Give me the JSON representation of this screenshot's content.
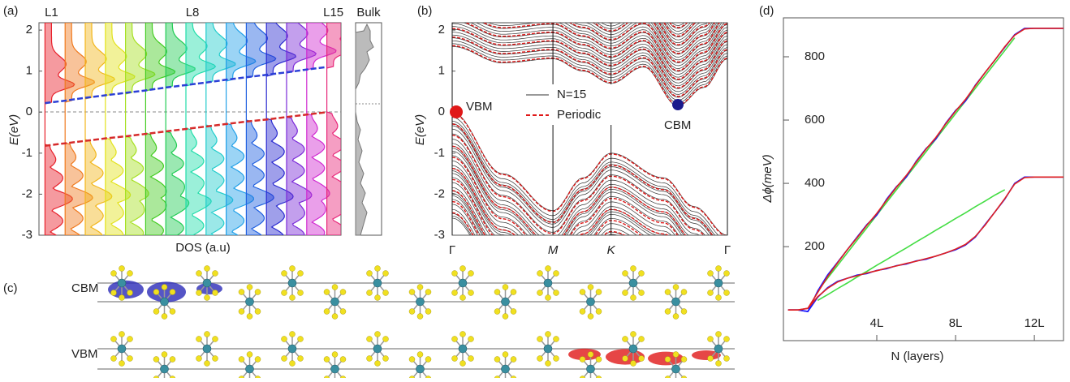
{
  "chart_data": [
    {
      "type": "dos",
      "panel_label": "(a)",
      "categories": [
        "L1",
        null,
        null,
        null,
        null,
        null,
        null,
        "L8",
        null,
        null,
        null,
        null,
        null,
        null,
        "L15"
      ],
      "series": [
        {
          "color": "#2b3fd6",
          "values": [
            0.22,
            0.28,
            0.35,
            0.41,
            0.47,
            0.53,
            0.6,
            0.66,
            0.72,
            0.79,
            0.85,
            0.91,
            0.97,
            1.04,
            1.1
          ]
        },
        {
          "color": "#d62b2b",
          "values": [
            -0.82,
            -0.76,
            -0.7,
            -0.64,
            -0.59,
            -0.53,
            -0.47,
            -0.41,
            -0.35,
            -0.29,
            -0.23,
            -0.18,
            -0.12,
            -0.06,
            0
          ]
        }
      ],
      "layer_colors": [
        "#e8202a",
        "#f07a1e",
        "#f2b61a",
        "#e2e21c",
        "#a6e022",
        "#44cc22",
        "#22cc55",
        "#22ddaa",
        "#22cccc",
        "#22a0e8",
        "#2060e0",
        "#2a2ad0",
        "#7a2ad8",
        "#d02ad0",
        "#e8287a"
      ],
      "ylim": [
        -3,
        2.18
      ],
      "yticks": [
        -3,
        -2,
        -1,
        0,
        1,
        2
      ],
      "ylabel": "E(eV)",
      "xlabel": "DOS (a.u)",
      "inset_label": "Bulk"
    },
    {
      "type": "bands",
      "panel_label": "(b)",
      "xlim": [
        0,
        2.732
      ],
      "xticks": [
        {
          "value": 0,
          "label": "Γ"
        },
        {
          "value": 1,
          "label": "M"
        },
        {
          "value": 1.577,
          "label": "K"
        },
        {
          "value": 2.732,
          "label": "Γ"
        }
      ],
      "ylim": [
        -3,
        2.18
      ],
      "yticks": [
        -3,
        -2,
        -1,
        0,
        1,
        2
      ],
      "ylabel": "E(eV)",
      "legend": [
        {
          "label": "N=15",
          "color": "#333333"
        },
        {
          "label": "Periodic",
          "color": "#e01818"
        }
      ],
      "annotations": [
        {
          "text": "VBM",
          "color": "#e01818"
        },
        {
          "text": "CBM",
          "color": "#1a1a8c"
        }
      ]
    },
    {
      "type": "line",
      "panel_label": "(d)",
      "x": [
        -0.5,
        0,
        0.5,
        1,
        1.5,
        2,
        2.5,
        3,
        3.5,
        4,
        4.5,
        5,
        5.5,
        6,
        6.5,
        7,
        7.5,
        8,
        8.5,
        9,
        9.5,
        10,
        10.5,
        11,
        11.5,
        12,
        12.5,
        13,
        13.5
      ],
      "series": [
        {
          "color": "#44dd44",
          "values": [
            null,
            null,
            null,
            60,
            100,
            140,
            180,
            220,
            260,
            300,
            340,
            380,
            420,
            460,
            500,
            540,
            580,
            620,
            660,
            700,
            740,
            780,
            820,
            860,
            null,
            null,
            null,
            null,
            null
          ]
        },
        {
          "color": "#44dd44",
          "values": [
            null,
            null,
            null,
            30,
            48,
            67,
            85,
            104,
            122,
            141,
            159,
            178,
            196,
            215,
            233,
            252,
            270,
            289,
            307,
            326,
            344,
            363,
            380,
            null,
            null,
            null,
            null,
            null,
            null
          ]
        },
        {
          "color": "#1a1aff",
          "values": [
            0,
            0,
            -5,
            60,
            110,
            150,
            190,
            230,
            270,
            300,
            350,
            390,
            420,
            470,
            510,
            540,
            590,
            630,
            660,
            710,
            750,
            790,
            830,
            870,
            890,
            890,
            890,
            890,
            890
          ]
        },
        {
          "color": "#1a1aff",
          "values": [
            0,
            0,
            -5,
            40,
            70,
            90,
            100,
            110,
            115,
            125,
            130,
            140,
            145,
            155,
            160,
            170,
            180,
            190,
            205,
            230,
            270,
            310,
            350,
            400,
            420,
            420,
            420,
            420,
            420
          ]
        },
        {
          "color": "#e02020",
          "values": [
            0,
            0,
            5,
            55,
            105,
            148,
            190,
            228,
            268,
            305,
            347,
            388,
            425,
            467,
            508,
            545,
            588,
            628,
            665,
            708,
            750,
            790,
            832,
            868,
            888,
            890,
            890,
            890,
            890
          ]
        },
        {
          "color": "#e02020",
          "values": [
            0,
            0,
            5,
            42,
            68,
            88,
            100,
            108,
            117,
            124,
            132,
            139,
            147,
            154,
            162,
            170,
            180,
            192,
            207,
            232,
            268,
            310,
            352,
            398,
            418,
            420,
            420,
            420,
            420
          ]
        }
      ],
      "xlim": [
        -0.74,
        13.48
      ],
      "ylim": [
        -97,
        923
      ],
      "xticks": [
        {
          "value": 4,
          "label": "4L"
        },
        {
          "value": 8,
          "label": "8L"
        },
        {
          "value": 12,
          "label": "12L"
        }
      ],
      "yticks": [
        200,
        400,
        600,
        800
      ],
      "xlabel": "N (layers)",
      "ylabel": "Δϕ(meV)"
    }
  ],
  "structure": {
    "panel_label": "(c)",
    "rows": [
      {
        "label": "CBM",
        "color": "#2a2ab8"
      },
      {
        "label": "VBM",
        "color": "#e01818"
      }
    ]
  }
}
